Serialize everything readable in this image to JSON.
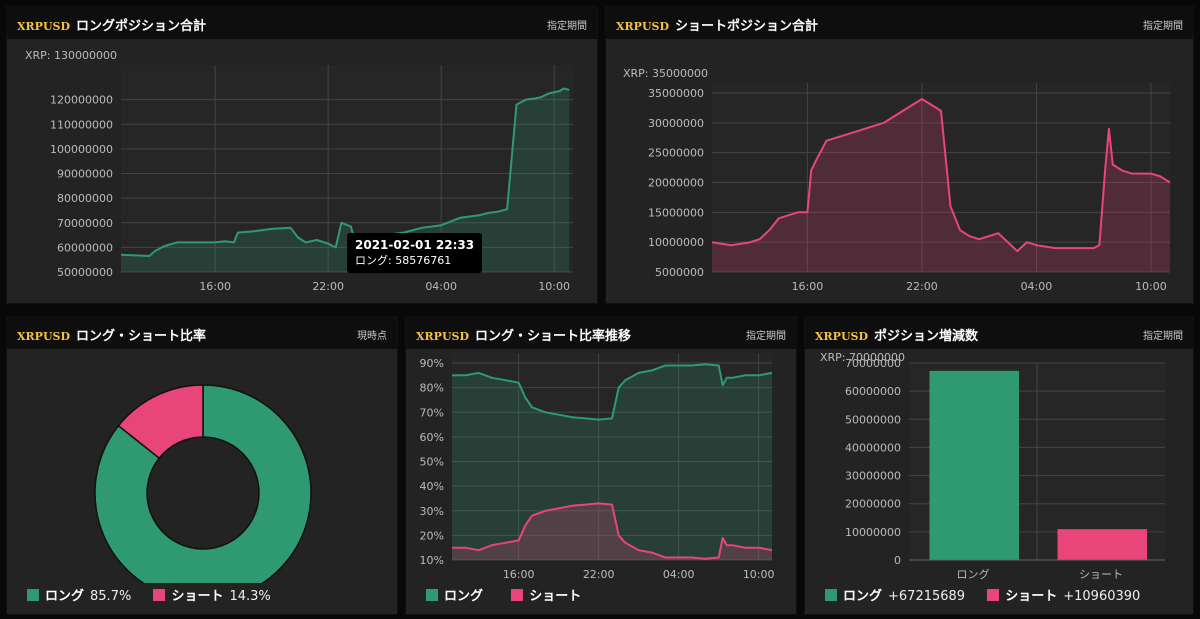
{
  "colors": {
    "long": "#2f9a72",
    "short": "#e8457a",
    "header_bg": "#0e0e0e",
    "panel_bg": "#232323",
    "symbol": "#f5c242"
  },
  "symbol": "XRPUSD",
  "panels": {
    "long_total": {
      "title": "ロングポジション合計",
      "button": "指定期間",
      "unit": "XRP: 130000000"
    },
    "short_total": {
      "title": "ショートポジション合計",
      "button": "指定期間",
      "unit": "XRP: 35000000"
    },
    "ratio": {
      "title": "ロング・ショート比率",
      "button": "現時点"
    },
    "ratio_trend": {
      "title": "ロング・ショート比率推移",
      "button": "指定期間"
    },
    "change": {
      "title": "ポジション増減数",
      "button": "指定期間",
      "unit": "XRP: 70000000"
    }
  },
  "tooltip": {
    "time": "2021-02-01 22:33",
    "label": "ロング: 58576761"
  },
  "legend": {
    "long": "ロング",
    "short": "ショート",
    "long_pct": "85.7%",
    "short_pct": "14.3%",
    "long_change": "+67215689",
    "short_change": "+10960390"
  },
  "chart_data": [
    {
      "id": "long_total",
      "type": "area",
      "x_ticks": [
        "16:00",
        "22:00",
        "04:00",
        "10:00"
      ],
      "x_tick_pos": [
        5,
        11,
        17,
        23
      ],
      "x_range": [
        0,
        24
      ],
      "ylim": [
        50000000,
        130000000
      ],
      "y_ticks": [
        50000000,
        60000000,
        70000000,
        80000000,
        90000000,
        100000000,
        110000000,
        120000000
      ],
      "x": [
        0,
        1.5,
        1.8,
        2.3,
        3,
        4,
        5,
        5.5,
        6,
        6.2,
        7,
        8,
        9,
        9.4,
        9.8,
        10.4,
        11,
        11.4,
        11.7,
        12.2,
        12.5,
        12.9,
        13.3,
        14,
        15,
        16,
        17,
        18,
        19,
        19.5,
        20,
        20.5,
        21,
        21.5,
        22,
        22.3,
        22.7,
        23,
        23.3,
        23.5,
        23.8
      ],
      "series": [
        {
          "name": "ロング",
          "values": [
            57000000,
            56500000,
            58500000,
            60500000,
            62000000,
            62000000,
            62000000,
            62500000,
            62000000,
            66000000,
            66500000,
            67500000,
            68000000,
            64000000,
            62000000,
            63000000,
            61500000,
            60000000,
            70000000,
            68500000,
            60500000,
            58500000,
            61000000,
            65000000,
            66000000,
            68000000,
            69000000,
            72000000,
            73000000,
            74000000,
            74500000,
            75500000,
            118000000,
            120000000,
            120500000,
            121000000,
            122500000,
            123000000,
            123500000,
            124500000,
            124000000
          ]
        }
      ]
    },
    {
      "id": "short_total",
      "type": "area",
      "x_ticks": [
        "16:00",
        "22:00",
        "04:00",
        "10:00"
      ],
      "x_tick_pos": [
        5,
        11,
        17,
        23
      ],
      "x_range": [
        0,
        24
      ],
      "ylim": [
        5000000,
        35000000
      ],
      "y_ticks": [
        5000000,
        10000000,
        15000000,
        20000000,
        25000000,
        30000000,
        35000000
      ],
      "x": [
        0,
        1,
        2,
        2.5,
        3,
        3.5,
        4,
        4.5,
        5,
        5.2,
        5.5,
        6,
        7,
        8,
        9,
        10,
        11,
        11.5,
        12,
        12.5,
        13,
        13.5,
        14,
        14.5,
        15,
        16,
        16.5,
        17,
        18,
        19,
        20,
        20.3,
        20.6,
        20.8,
        21,
        21.5,
        22,
        23,
        23.5,
        24
      ],
      "series": [
        {
          "name": "ショート",
          "values": [
            10000000,
            9500000,
            10000000,
            10500000,
            12000000,
            14000000,
            14500000,
            15000000,
            15000000,
            22000000,
            24000000,
            27000000,
            28000000,
            29000000,
            30000000,
            32000000,
            34000000,
            33000000,
            32000000,
            16000000,
            12000000,
            11000000,
            10500000,
            11000000,
            11500000,
            8500000,
            10000000,
            9500000,
            9000000,
            9000000,
            9000000,
            9500000,
            22000000,
            29000000,
            23000000,
            22000000,
            21500000,
            21500000,
            21000000,
            20000000
          ]
        }
      ]
    },
    {
      "id": "ratio",
      "type": "pie",
      "series": [
        {
          "name": "ロング",
          "values": [
            85.7
          ]
        },
        {
          "name": "ショート",
          "values": [
            14.3
          ]
        }
      ]
    },
    {
      "id": "ratio_trend",
      "type": "area",
      "x_ticks": [
        "16:00",
        "22:00",
        "04:00",
        "10:00"
      ],
      "x_tick_pos": [
        5,
        11,
        17,
        23
      ],
      "x_range": [
        0,
        24
      ],
      "ylim": [
        10,
        90
      ],
      "y_ticks": [
        10,
        20,
        30,
        40,
        50,
        60,
        70,
        80,
        90
      ],
      "x": [
        0,
        1,
        2,
        3,
        4,
        5,
        5.5,
        6,
        7,
        8,
        9,
        10,
        11,
        12,
        12.5,
        13,
        14,
        15,
        16,
        17,
        18,
        19,
        20,
        20.3,
        20.6,
        21,
        22,
        23,
        24
      ],
      "series": [
        {
          "name": "ロング",
          "values": [
            85,
            85,
            86,
            84,
            83,
            82,
            76,
            72,
            70,
            69,
            68,
            67.5,
            67,
            67.5,
            80,
            83,
            86,
            87,
            89,
            89,
            89,
            89.5,
            89,
            81,
            84,
            84,
            85,
            85,
            86
          ]
        },
        {
          "name": "ショート",
          "values": [
            15,
            15,
            14,
            16,
            17,
            18,
            24,
            28,
            30,
            31,
            32,
            32.5,
            33,
            32.5,
            20,
            17,
            14,
            13,
            11,
            11,
            11,
            10.5,
            11,
            19,
            16,
            16,
            15,
            15,
            14
          ]
        }
      ]
    },
    {
      "id": "change",
      "type": "bar",
      "categories": [
        "ロング",
        "ショート"
      ],
      "ylim": [
        0,
        70000000
      ],
      "y_ticks": [
        0,
        10000000,
        20000000,
        30000000,
        40000000,
        50000000,
        60000000,
        70000000
      ],
      "series": [
        {
          "name": "増減",
          "values": [
            67215689,
            10960390
          ]
        }
      ]
    }
  ]
}
